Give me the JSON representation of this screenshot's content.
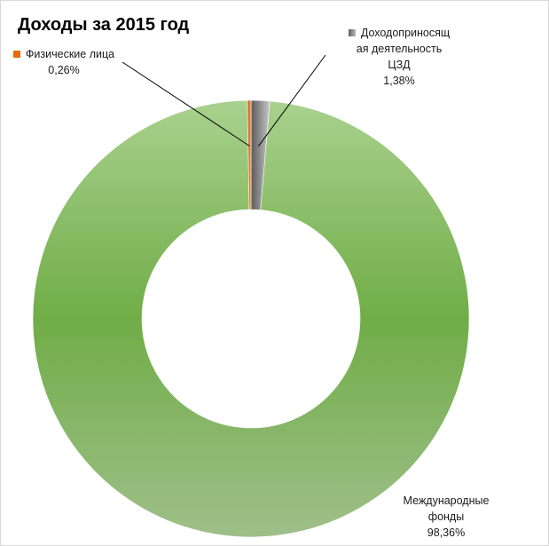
{
  "chart_data": {
    "type": "pie",
    "subtype": "donut",
    "title": "Доходы за 2015 год",
    "slices": [
      {
        "name": "Доходоприносящая деятельность ЦЗД",
        "label_lines": [
          "Доходоприносящ",
          "ая деятельность",
          "ЦЗД"
        ],
        "value": 1.38,
        "value_label": "1,38%",
        "color": "#8c8c8c",
        "color_light": "#c8c8c8",
        "color_dark": "#5a5a5a"
      },
      {
        "name": "Международные фонды",
        "label_lines": [
          "Международные",
          "фонды"
        ],
        "value": 98.36,
        "value_label": "98,36%",
        "color": "#70ad47",
        "color_light": "#a9d18e",
        "color_dark": "#8fb07a"
      },
      {
        "name": "Физические лица",
        "label_lines": [
          "Физические лица"
        ],
        "value": 0.26,
        "value_label": "0,26%",
        "color": "#e46c0a",
        "color_light": "#f28e3b",
        "color_dark": "#c55a11"
      }
    ],
    "start_angle_deg": 0,
    "direction": "clockwise",
    "legend": "none",
    "leader_line_color": "#000000"
  }
}
